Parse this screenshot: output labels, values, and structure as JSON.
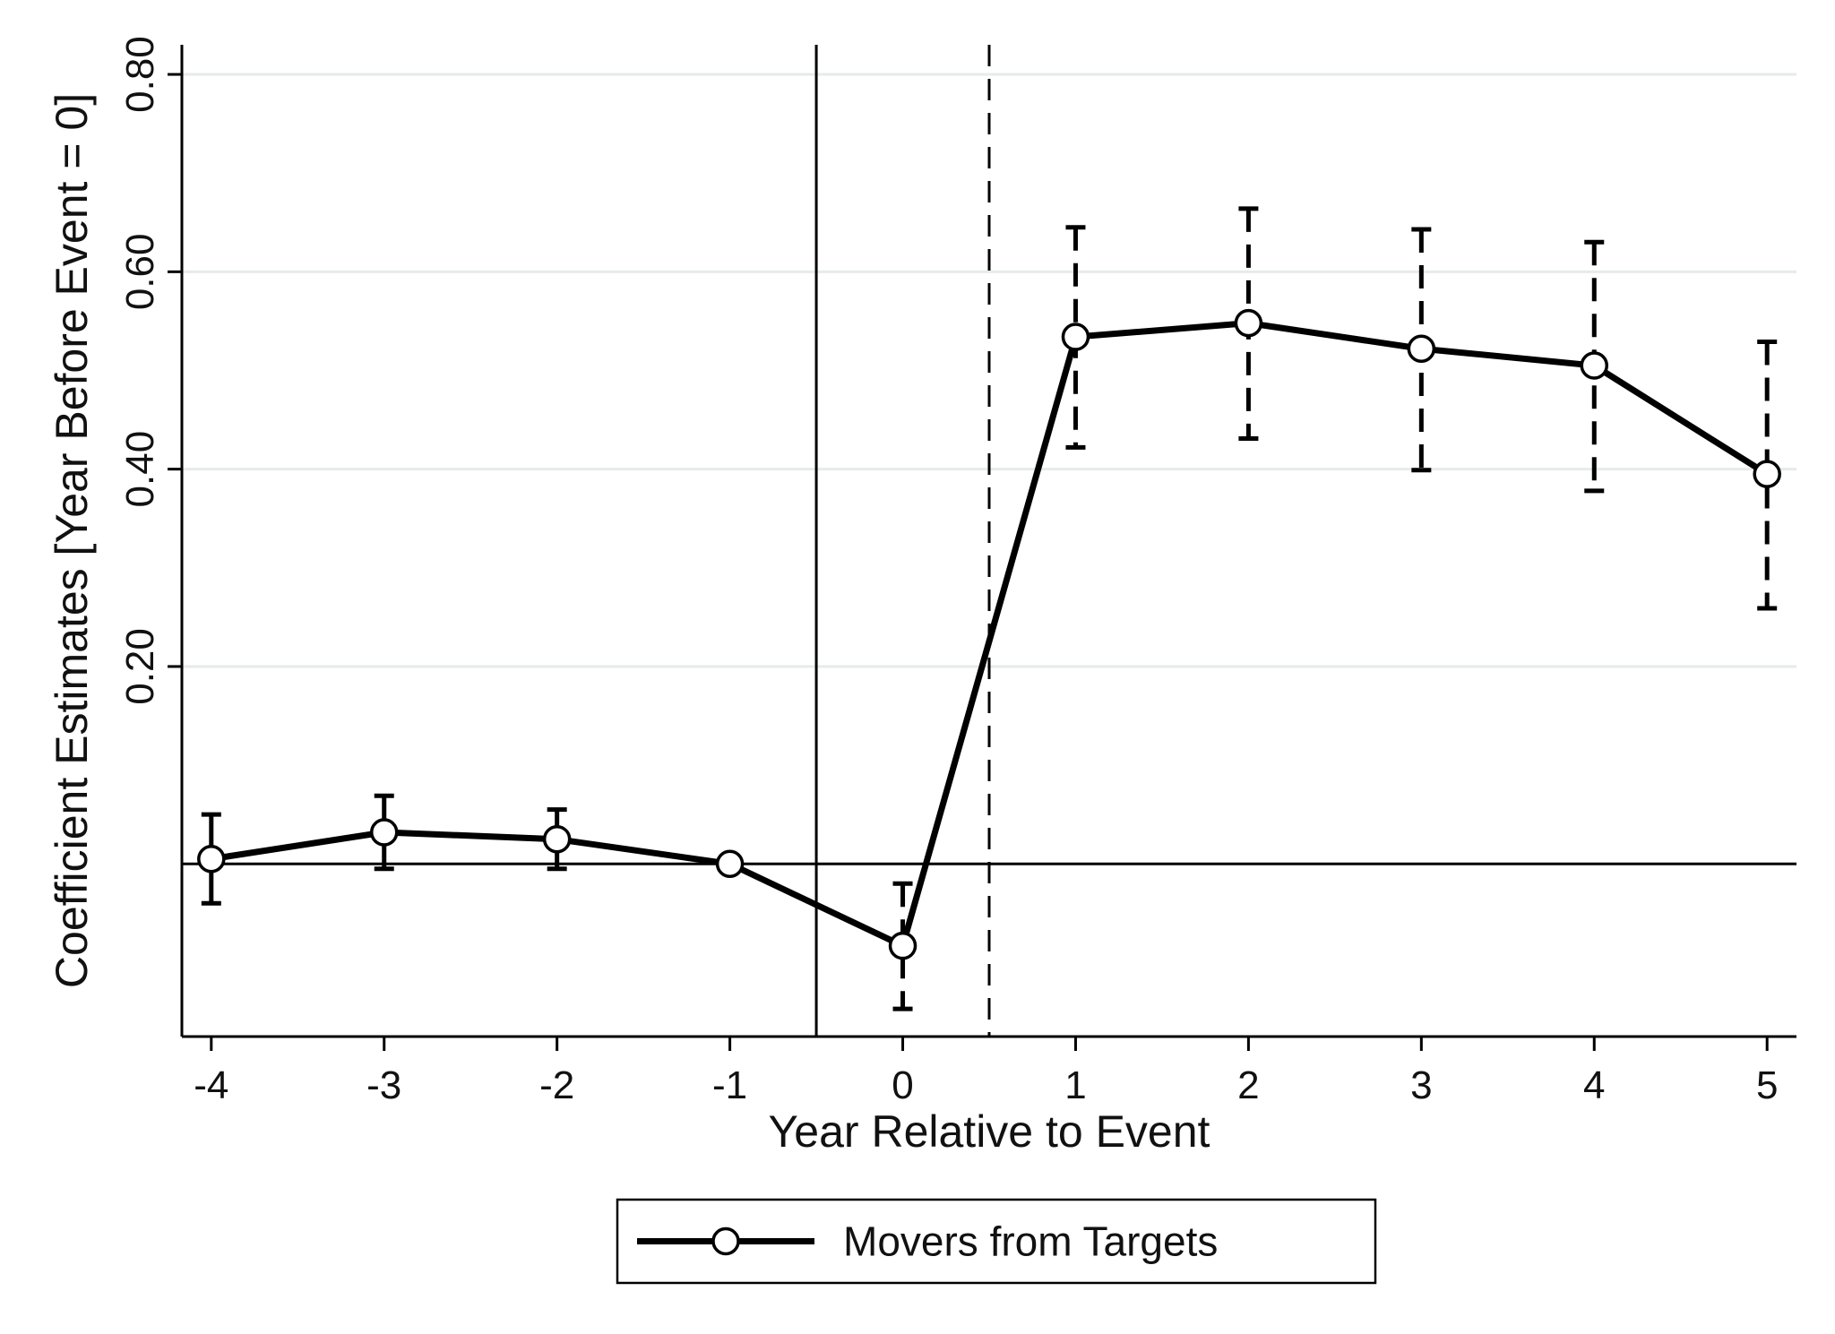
{
  "chart_data": {
    "type": "line",
    "title": "",
    "xlabel": "Year Relative to Event",
    "ylabel": "Coefficient Estimates [Year Before Event = 0]",
    "xlim": [
      -4.17,
      5.17
    ],
    "ylim": [
      -0.175,
      0.83
    ],
    "x_ticks": [
      -4,
      -3,
      -2,
      -1,
      0,
      1,
      2,
      3,
      4,
      5
    ],
    "x_tick_labels": [
      "-4",
      "-3",
      "-2",
      "-1",
      "0",
      "1",
      "2",
      "3",
      "4",
      "5"
    ],
    "y_ticks": [
      0.2,
      0.4,
      0.6,
      0.8
    ],
    "y_tick_labels": [
      "0.20",
      "0.40",
      "0.60",
      "0.80"
    ],
    "grid": true,
    "reference_lines": {
      "horizontal_solid": 0,
      "vertical_solid": -0.5,
      "vertical_dashed": 0.5
    },
    "series": [
      {
        "name": "Movers from Targets",
        "x": [
          -4,
          -3,
          -2,
          -1,
          0,
          1,
          2,
          3,
          4,
          5
        ],
        "y": [
          0.005,
          0.032,
          0.025,
          0.0,
          -0.083,
          0.534,
          0.548,
          0.522,
          0.505,
          0.395
        ],
        "ci_low": [
          -0.04,
          -0.005,
          -0.005,
          0.0,
          -0.147,
          0.422,
          0.431,
          0.399,
          0.378,
          0.259
        ],
        "ci_high": [
          0.05,
          0.069,
          0.055,
          0.0,
          -0.02,
          0.645,
          0.664,
          0.643,
          0.63,
          0.529
        ],
        "ci_style_by_x": [
          "solid",
          "solid",
          "solid",
          "solid",
          "dashed",
          "dashed",
          "dashed",
          "dashed",
          "dashed",
          "dashed"
        ]
      }
    ],
    "legend": {
      "position": "bottom-center",
      "entries": [
        "Movers from Targets"
      ]
    }
  }
}
